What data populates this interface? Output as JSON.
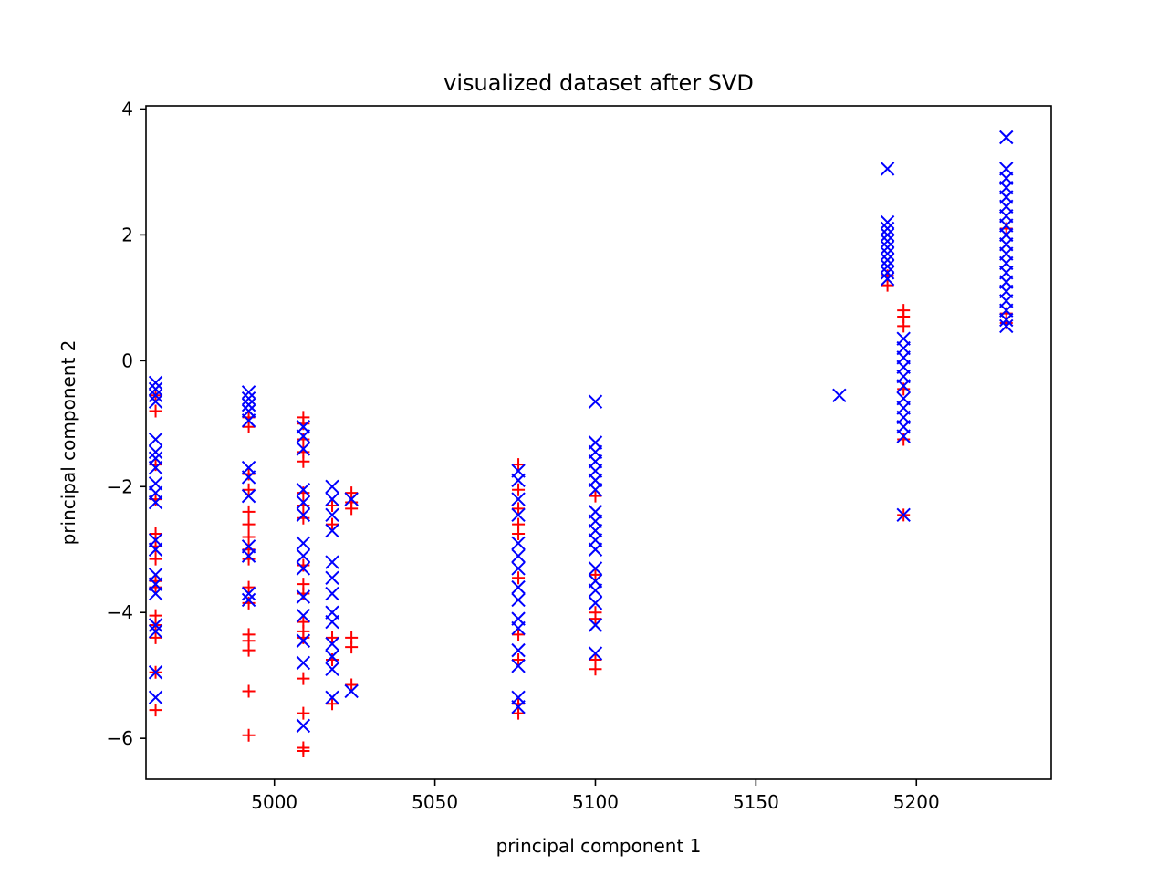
{
  "chart_data": {
    "type": "scatter",
    "title": "visualized dataset after SVD",
    "xlabel": "principal component 1",
    "ylabel": "principal component 2",
    "xlim": [
      4960,
      5242
    ],
    "ylim": [
      -6.65,
      4.05
    ],
    "xticks": [
      5000,
      5050,
      5100,
      5150,
      5200
    ],
    "yticks": [
      -6,
      -4,
      -2,
      0,
      2,
      4
    ],
    "grid": false,
    "series": [
      {
        "marker": "+",
        "color": "#ff0000",
        "points": [
          [
            4963,
            -0.55
          ],
          [
            4963,
            -0.8
          ],
          [
            4963,
            -1.65
          ],
          [
            4963,
            -2.2
          ],
          [
            4963,
            -2.75
          ],
          [
            4963,
            -2.95
          ],
          [
            4963,
            -3.15
          ],
          [
            4963,
            -3.5
          ],
          [
            4963,
            -3.6
          ],
          [
            4963,
            -4.05
          ],
          [
            4963,
            -4.2
          ],
          [
            4963,
            -4.4
          ],
          [
            4963,
            -4.95
          ],
          [
            4963,
            -5.55
          ],
          [
            4992,
            -0.9
          ],
          [
            4992,
            -1.05
          ],
          [
            4992,
            -1.8
          ],
          [
            4992,
            -2.05
          ],
          [
            4992,
            -2.4
          ],
          [
            4992,
            -2.6
          ],
          [
            4992,
            -2.8
          ],
          [
            4992,
            -3.0
          ],
          [
            4992,
            -3.15
          ],
          [
            4992,
            -3.6
          ],
          [
            4992,
            -3.85
          ],
          [
            4992,
            -4.35
          ],
          [
            4992,
            -4.45
          ],
          [
            4992,
            -4.6
          ],
          [
            4992,
            -5.25
          ],
          [
            4992,
            -5.95
          ],
          [
            5009,
            -0.9
          ],
          [
            5009,
            -1.0
          ],
          [
            5009,
            -1.25
          ],
          [
            5009,
            -1.45
          ],
          [
            5009,
            -1.6
          ],
          [
            5009,
            -2.1
          ],
          [
            5009,
            -2.3
          ],
          [
            5009,
            -2.5
          ],
          [
            5009,
            -3.25
          ],
          [
            5009,
            -3.55
          ],
          [
            5009,
            -3.7
          ],
          [
            5009,
            -4.15
          ],
          [
            5009,
            -4.3
          ],
          [
            5009,
            -4.4
          ],
          [
            5009,
            -5.05
          ],
          [
            5009,
            -5.6
          ],
          [
            5009,
            -6.15
          ],
          [
            5009,
            -6.2
          ],
          [
            5018,
            -2.3
          ],
          [
            5018,
            -2.6
          ],
          [
            5018,
            -4.4
          ],
          [
            5018,
            -4.75
          ],
          [
            5018,
            -5.45
          ],
          [
            5024,
            -2.1
          ],
          [
            5024,
            -2.25
          ],
          [
            5024,
            -2.35
          ],
          [
            5024,
            -4.4
          ],
          [
            5024,
            -4.55
          ],
          [
            5024,
            -5.15
          ],
          [
            5076,
            -1.65
          ],
          [
            5076,
            -2.05
          ],
          [
            5076,
            -2.35
          ],
          [
            5076,
            -2.6
          ],
          [
            5076,
            -2.75
          ],
          [
            5076,
            -3.45
          ],
          [
            5076,
            -4.35
          ],
          [
            5076,
            -4.75
          ],
          [
            5076,
            -5.45
          ],
          [
            5076,
            -5.6
          ],
          [
            5100,
            -2.15
          ],
          [
            5100,
            -3.4
          ],
          [
            5100,
            -4.0
          ],
          [
            5100,
            -4.1
          ],
          [
            5100,
            -4.75
          ],
          [
            5100,
            -4.9
          ],
          [
            5191,
            1.2
          ],
          [
            5191,
            1.35
          ],
          [
            5196,
            0.8
          ],
          [
            5196,
            0.7
          ],
          [
            5196,
            0.55
          ],
          [
            5196,
            -0.45
          ],
          [
            5196,
            -1.25
          ],
          [
            5196,
            -2.45
          ],
          [
            5228,
            0.75
          ],
          [
            5228,
            2.1
          ],
          [
            5228,
            0.6
          ]
        ]
      },
      {
        "marker": "x",
        "color": "#0000ff",
        "points": [
          [
            4963,
            -0.35
          ],
          [
            4963,
            -0.45
          ],
          [
            4963,
            -0.55
          ],
          [
            4963,
            -0.65
          ],
          [
            4963,
            -1.25
          ],
          [
            4963,
            -1.45
          ],
          [
            4963,
            -1.55
          ],
          [
            4963,
            -1.7
          ],
          [
            4963,
            -1.95
          ],
          [
            4963,
            -2.1
          ],
          [
            4963,
            -2.25
          ],
          [
            4963,
            -2.85
          ],
          [
            4963,
            -3.0
          ],
          [
            4963,
            -3.4
          ],
          [
            4963,
            -3.55
          ],
          [
            4963,
            -3.7
          ],
          [
            4963,
            -4.2
          ],
          [
            4963,
            -4.3
          ],
          [
            4963,
            -4.95
          ],
          [
            4963,
            -5.35
          ],
          [
            4992,
            -0.5
          ],
          [
            4992,
            -0.6
          ],
          [
            4992,
            -0.7
          ],
          [
            4992,
            -0.8
          ],
          [
            4992,
            -0.95
          ],
          [
            4992,
            -1.7
          ],
          [
            4992,
            -1.85
          ],
          [
            4992,
            -2.15
          ],
          [
            4992,
            -2.95
          ],
          [
            4992,
            -3.1
          ],
          [
            4992,
            -3.7
          ],
          [
            4992,
            -3.8
          ],
          [
            5009,
            -1.05
          ],
          [
            5009,
            -1.2
          ],
          [
            5009,
            -1.4
          ],
          [
            5009,
            -2.05
          ],
          [
            5009,
            -2.25
          ],
          [
            5009,
            -2.45
          ],
          [
            5009,
            -2.9
          ],
          [
            5009,
            -3.1
          ],
          [
            5009,
            -3.3
          ],
          [
            5009,
            -3.75
          ],
          [
            5009,
            -4.05
          ],
          [
            5009,
            -4.45
          ],
          [
            5009,
            -4.8
          ],
          [
            5009,
            -5.8
          ],
          [
            5018,
            -2.0
          ],
          [
            5018,
            -2.2
          ],
          [
            5018,
            -2.45
          ],
          [
            5018,
            -2.7
          ],
          [
            5018,
            -3.2
          ],
          [
            5018,
            -3.45
          ],
          [
            5018,
            -3.7
          ],
          [
            5018,
            -4.0
          ],
          [
            5018,
            -4.15
          ],
          [
            5018,
            -4.5
          ],
          [
            5018,
            -4.7
          ],
          [
            5018,
            -4.9
          ],
          [
            5018,
            -5.35
          ],
          [
            5024,
            -2.2
          ],
          [
            5024,
            -5.25
          ],
          [
            5076,
            -1.75
          ],
          [
            5076,
            -1.9
          ],
          [
            5076,
            -2.2
          ],
          [
            5076,
            -2.45
          ],
          [
            5076,
            -2.9
          ],
          [
            5076,
            -3.1
          ],
          [
            5076,
            -3.3
          ],
          [
            5076,
            -3.6
          ],
          [
            5076,
            -3.8
          ],
          [
            5076,
            -4.1
          ],
          [
            5076,
            -4.25
          ],
          [
            5076,
            -4.6
          ],
          [
            5076,
            -4.85
          ],
          [
            5076,
            -5.35
          ],
          [
            5076,
            -5.5
          ],
          [
            5100,
            -0.65
          ],
          [
            5100,
            -1.3
          ],
          [
            5100,
            -1.45
          ],
          [
            5100,
            -1.6
          ],
          [
            5100,
            -1.75
          ],
          [
            5100,
            -1.9
          ],
          [
            5100,
            -2.05
          ],
          [
            5100,
            -2.4
          ],
          [
            5100,
            -2.55
          ],
          [
            5100,
            -2.7
          ],
          [
            5100,
            -2.85
          ],
          [
            5100,
            -3.0
          ],
          [
            5100,
            -3.3
          ],
          [
            5100,
            -3.5
          ],
          [
            5100,
            -3.65
          ],
          [
            5100,
            -3.85
          ],
          [
            5100,
            -4.2
          ],
          [
            5100,
            -4.65
          ],
          [
            5176,
            -0.55
          ],
          [
            5191,
            3.05
          ],
          [
            5191,
            2.2
          ],
          [
            5191,
            2.1
          ],
          [
            5191,
            2.0
          ],
          [
            5191,
            1.9
          ],
          [
            5191,
            1.8
          ],
          [
            5191,
            1.7
          ],
          [
            5191,
            1.6
          ],
          [
            5191,
            1.5
          ],
          [
            5191,
            1.4
          ],
          [
            5191,
            1.3
          ],
          [
            5196,
            0.35
          ],
          [
            5196,
            0.2
          ],
          [
            5196,
            0.05
          ],
          [
            5196,
            -0.1
          ],
          [
            5196,
            -0.25
          ],
          [
            5196,
            -0.4
          ],
          [
            5196,
            -0.6
          ],
          [
            5196,
            -0.75
          ],
          [
            5196,
            -0.9
          ],
          [
            5196,
            -1.05
          ],
          [
            5196,
            -1.2
          ],
          [
            5196,
            -2.45
          ],
          [
            5228,
            3.55
          ],
          [
            5228,
            3.05
          ],
          [
            5228,
            2.9
          ],
          [
            5228,
            2.75
          ],
          [
            5228,
            2.6
          ],
          [
            5228,
            2.45
          ],
          [
            5228,
            2.3
          ],
          [
            5228,
            2.15
          ],
          [
            5228,
            2.0
          ],
          [
            5228,
            1.85
          ],
          [
            5228,
            1.7
          ],
          [
            5228,
            1.55
          ],
          [
            5228,
            1.4
          ],
          [
            5228,
            1.25
          ],
          [
            5228,
            1.1
          ],
          [
            5228,
            0.95
          ],
          [
            5228,
            0.8
          ],
          [
            5228,
            0.65
          ],
          [
            5228,
            0.55
          ]
        ]
      }
    ]
  }
}
